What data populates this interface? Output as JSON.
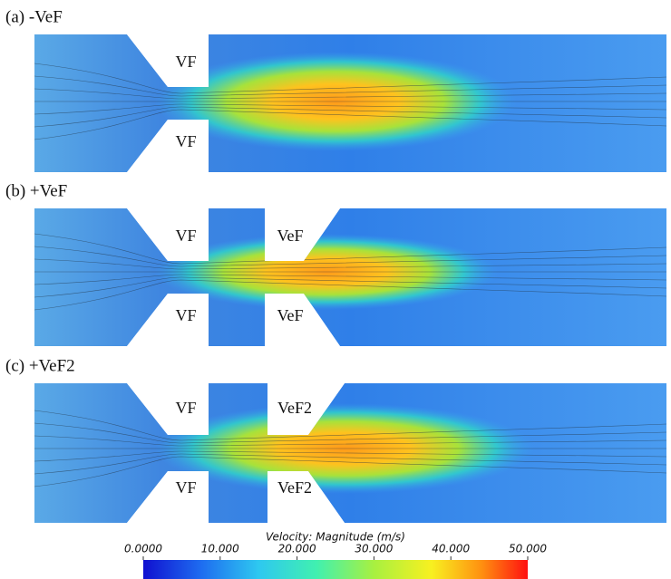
{
  "panels": [
    {
      "label": "(a) -VeF",
      "region_labels": [
        "VF",
        "VF"
      ]
    },
    {
      "label": "(b) +VeF",
      "region_labels": [
        "VF",
        "VF",
        "VeF",
        "VeF"
      ]
    },
    {
      "label": "(c) +VeF2",
      "region_labels": [
        "VF",
        "VF",
        "VeF2",
        "VeF2"
      ]
    }
  ],
  "colorbar": {
    "title": "Velocity: Magnitude (m/s)",
    "range": [
      0,
      50
    ],
    "ticks": [
      {
        "value": 0,
        "label": "0.0000"
      },
      {
        "value": 10,
        "label": "10.000"
      },
      {
        "value": 20,
        "label": "20.000"
      },
      {
        "value": 30,
        "label": "30.000"
      },
      {
        "value": 40,
        "label": "40.000"
      },
      {
        "value": 50,
        "label": "50.000"
      }
    ]
  }
}
